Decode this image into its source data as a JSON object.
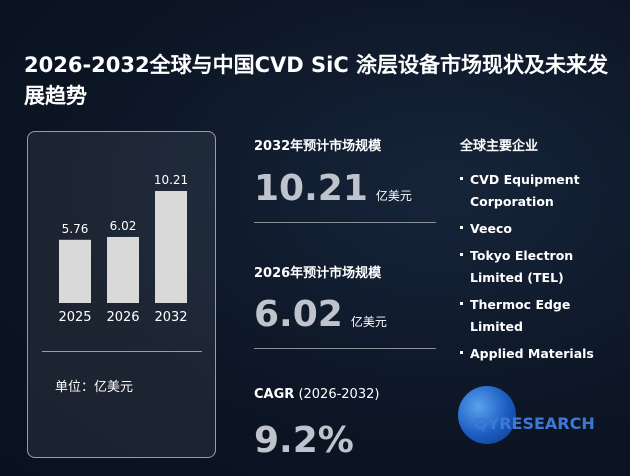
{
  "title": "2026-2032全球与中国CVD SiC 涂层设备市场现状及未来发展趋势",
  "chart_data": {
    "type": "bar",
    "categories": [
      "2025",
      "2026",
      "2032"
    ],
    "values": [
      5.76,
      6.02,
      10.21
    ],
    "value_labels": [
      "5.76",
      "6.02",
      "10.21"
    ],
    "ylim": [
      0,
      10.21
    ],
    "bar_color": "#d9d9d9",
    "unit_label": "单位：亿美元"
  },
  "stats": {
    "market_2032": {
      "label": "2032年预计市场规模",
      "value": "10.21",
      "unit": "亿美元"
    },
    "market_2026": {
      "label": "2026年预计市场规模",
      "value": "6.02",
      "unit": "亿美元"
    },
    "cagr": {
      "label": "CAGR",
      "period": "(2026-2032)",
      "value": "9.2%"
    }
  },
  "companies": {
    "title": "全球主要企业",
    "items": [
      "CVD Equipment Corporation",
      "Veeco",
      "Tokyo Electron Limited (TEL)",
      "Thermoc Edge Limited",
      "Applied Materials"
    ]
  },
  "logo": {
    "brand_a": "QYR",
    "brand_b": "ESEARCH",
    "icon": "globe-icon"
  },
  "colors": {
    "background": "#0c1524",
    "value_gray": "#bfc4cc",
    "logo_red": "#e0342a",
    "logo_blue": "#3d78d8"
  }
}
